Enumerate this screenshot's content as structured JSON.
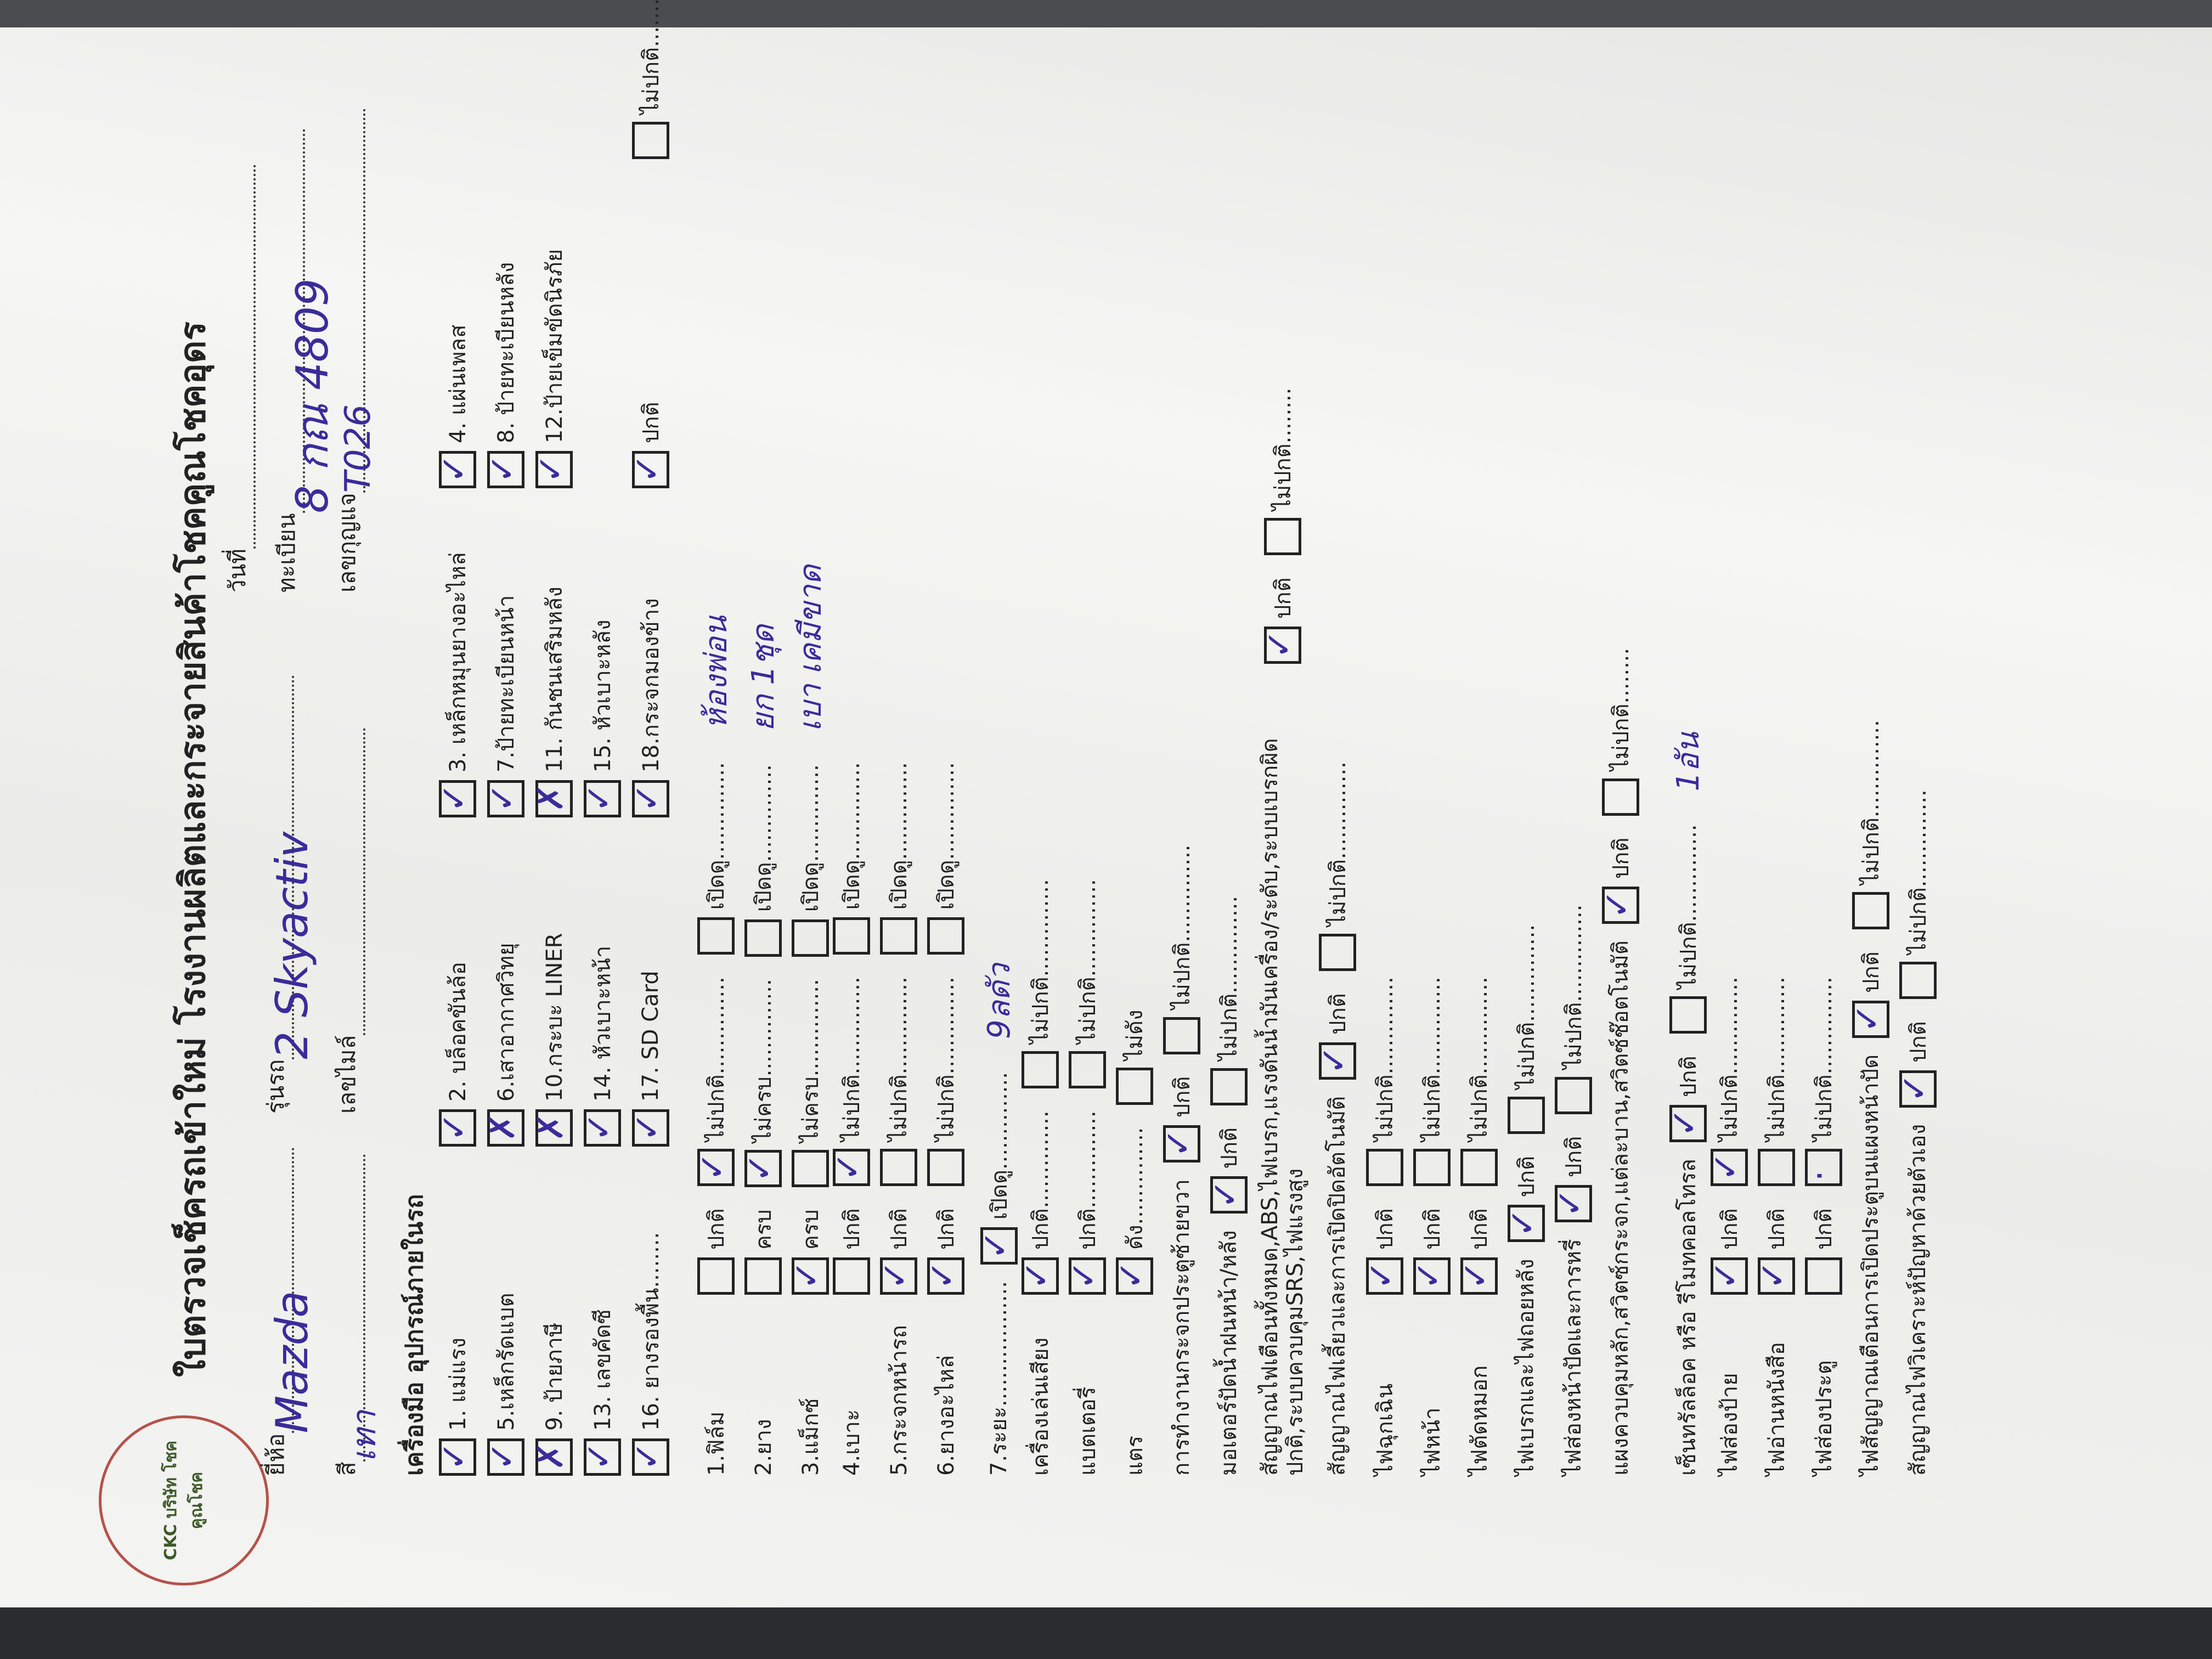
{
  "header": {
    "title": "ใบตรวจเช็ครถเข้าใหม่ โรงงานผลิตและกระจายสินค้าโชคคูณโชคอุดร",
    "logo_text": "CKC บริษัท โชคคูณโชค",
    "brand_label": "ยี่ห้อ",
    "brand_value": "Mazda",
    "model_label": "รุ่นรถ",
    "model_value": "2 Skyactiv",
    "date_label": "วันที่",
    "color_label": "สี",
    "color_value": "เทา",
    "mileage_label": "เลขไมล์",
    "plate_label": "ทะเบียน",
    "plate_value": "8 กณ 4809",
    "key_label": "เลขกุญแจ",
    "key_value": "T026"
  },
  "equipment_title": "เครื่องมือ อุปกรณ์ภายในรถ",
  "equipment_rows": [
    [
      {
        "t": "1. แม่แรง",
        "m": "✓"
      },
      {
        "t": "2. บล็อคขันล้อ",
        "m": "✓"
      },
      {
        "t": "3. เหล็กหมุนยางอะไหล่",
        "m": "✓"
      },
      {
        "t": "4. แผ่นเพลส",
        "m": "✓"
      }
    ],
    [
      {
        "t": "5.เหล็กรัดแบต",
        "m": "✓"
      },
      {
        "t": "6.เสาอากาศวิทยุ",
        "m": "✗"
      },
      {
        "t": "7.ป้ายทะเบียนหน้า",
        "m": "✓"
      },
      {
        "t": "8. ป้ายทะเบียนหลัง",
        "m": "✓"
      }
    ],
    [
      {
        "t": "9. ป้ายภาษี",
        "m": "✗"
      },
      {
        "t": "10.กระบะ LINER",
        "m": "✗"
      },
      {
        "t": "11. กันชนเสริมหลัง",
        "m": "✗"
      },
      {
        "t": "12.ป้ายเข็มขัดนิรภัย",
        "m": "✓"
      }
    ],
    [
      {
        "t": "13. เลขคัดซี",
        "m": "✓"
      },
      {
        "t": "14. หัวเบาะหน้า",
        "m": "✓"
      },
      {
        "t": "15. หัวเบาะหลัง",
        "m": "✓"
      }
    ],
    [
      {
        "t": "16. ยางรองพื้น........",
        "m": "✓"
      },
      {
        "t": "17. SD Card",
        "m": "✓"
      },
      {
        "t": "18.กระจกมองข้าง",
        "m": "✓"
      },
      {
        "t": "ปกติ",
        "m": "✓"
      },
      {
        "t": "ไม่ปกติ.............",
        "m": ""
      }
    ]
  ],
  "check_rows": [
    {
      "label": "1.ฟิล์ม",
      "items": [
        {
          "t": "ปกติ",
          "m": ""
        },
        {
          "t": "ไม่ปกติ..............",
          "m": "✓"
        },
        {
          "t": "เปิดดู..............",
          "m": ""
        }
      ],
      "note": "ห้องพ่อน"
    },
    {
      "label": "2.ยาง",
      "items": [
        {
          "t": "ครบ",
          "m": ""
        },
        {
          "t": "ไม่ครบ..............",
          "m": "✓"
        },
        {
          "t": "เปิดดู..............",
          "m": ""
        }
      ],
      "note": "ยก 1ชุด"
    },
    {
      "label": "3.แม็กซ์",
      "items": [
        {
          "t": "ครบ",
          "m": "✓"
        },
        {
          "t": "ไม่ครบ..............",
          "m": ""
        },
        {
          "t": "เปิดดู..............",
          "m": ""
        }
      ],
      "note": "เบา เคมีขาด"
    },
    {
      "label": "4.เบาะ",
      "items": [
        {
          "t": "ปกติ",
          "m": ""
        },
        {
          "t": "ไม่ปกติ..............",
          "m": "✓"
        },
        {
          "t": "เปิดดู..............",
          "m": ""
        }
      ]
    },
    {
      "label": "5.กระจกหน้ารถ",
      "items": [
        {
          "t": "ปกติ",
          "m": "✓"
        },
        {
          "t": "ไม่ปกติ..............",
          "m": ""
        },
        {
          "t": "เปิดดู..............",
          "m": ""
        }
      ]
    },
    {
      "label": "6.ยางอะไหล่",
      "items": [
        {
          "t": "ปกติ",
          "m": "✓"
        },
        {
          "t": "ไม่ปกติ..............",
          "m": ""
        },
        {
          "t": "เปิดดู..............",
          "m": ""
        }
      ]
    },
    {
      "label": "7.ระยะ..................",
      "items": [
        {
          "t": "เปิดดู..............",
          "m": "✓"
        }
      ],
      "note": "9ลดัว"
    },
    {
      "label": "เครื่องเล่นเสียง",
      "items": [
        {
          "t": "ปกติ..............",
          "m": "✓"
        },
        {
          "t": "ไม่ปกติ..............",
          "m": ""
        }
      ]
    },
    {
      "label": "แบตเตอรี่",
      "items": [
        {
          "t": "ปกติ..............",
          "m": "✓"
        },
        {
          "t": "ไม่ปกติ..............",
          "m": ""
        }
      ]
    },
    {
      "label": "แตร",
      "items": [
        {
          "t": "ดัง..............",
          "m": "✓"
        },
        {
          "t": "ไม่ดัง",
          "m": ""
        }
      ]
    },
    {
      "label": "การทำงานกระจกประตูซ้ายขวา",
      "items": [
        {
          "t": "ปกติ",
          "m": "✓"
        },
        {
          "t": "ไม่ปกติ..............",
          "m": ""
        }
      ]
    },
    {
      "label": "มอเตอร์ปัดน้ำฝนหน้า/หลัง",
      "items": [
        {
          "t": "ปกติ",
          "m": "✓"
        },
        {
          "t": "ไม่ปกติ..............",
          "m": ""
        }
      ]
    },
    {
      "label": "สัญญาณไฟเตือนทั้งหมด,ABS,ไฟเบรก,แรงดันน้ำมันเครื่อง/ระดับ,ระบบเบรกผิดปกติ,ระบบควบคุมSRS,ไฟแรงสูง",
      "items": [
        {
          "t": "ปกติ",
          "m": "✓"
        },
        {
          "t": "ไม่ปกติ........",
          "m": ""
        }
      ]
    },
    {
      "label": "สัญญาณไฟเลี้ยวและการเปิดปิดอัตโนมัติ",
      "items": [
        {
          "t": "ปกติ",
          "m": "✓"
        },
        {
          "t": "ไม่ปกติ..............",
          "m": ""
        }
      ]
    },
    {
      "label": "ไฟฉุกเฉิน",
      "items": [
        {
          "t": "ปกติ",
          "m": "✓"
        },
        {
          "t": "ไม่ปกติ..............",
          "m": ""
        }
      ]
    },
    {
      "label": "ไฟหน้า",
      "items": [
        {
          "t": "ปกติ",
          "m": "✓"
        },
        {
          "t": "ไม่ปกติ..............",
          "m": ""
        }
      ]
    },
    {
      "label": "ไฟตัดหมอก",
      "items": [
        {
          "t": "ปกติ",
          "m": "✓"
        },
        {
          "t": "ไม่ปกติ..............",
          "m": ""
        }
      ]
    },
    {
      "label": "ไฟเบรกและไฟถอยหลัง",
      "items": [
        {
          "t": "ปกติ",
          "m": "✓"
        },
        {
          "t": "ไม่ปกติ..............",
          "m": ""
        }
      ]
    },
    {
      "label": "ไฟส่องหน้าปัดและการหรี่",
      "items": [
        {
          "t": "ปกติ",
          "m": "✓"
        },
        {
          "t": "ไม่ปกติ..............",
          "m": ""
        }
      ]
    },
    {
      "label": "แผงควบคุมหลัก,สวิตซ์กระจก,แต่ละบาน,สวิตซ์ช๊อตโนมัติ",
      "items": [
        {
          "t": "ปกติ",
          "m": "✓"
        },
        {
          "t": "ไม่ปกติ........",
          "m": ""
        }
      ]
    },
    {
      "label": "เซ็นทรัลล็อค หรือ รีโมทคอลโทรล",
      "items": [
        {
          "t": "ปกติ",
          "m": "✓"
        },
        {
          "t": "ไม่ปกติ..............",
          "m": ""
        }
      ],
      "note": "1อัน"
    },
    {
      "label": "ไฟส่องป้าย",
      "items": [
        {
          "t": "ปกติ",
          "m": "✓"
        },
        {
          "t": "ไม่ปกติ..............",
          "m": "✓"
        }
      ]
    },
    {
      "label": "ไฟอ่านหนังสือ",
      "items": [
        {
          "t": "ปกติ",
          "m": "✓"
        },
        {
          "t": "ไม่ปกติ..............",
          "m": ""
        }
      ]
    },
    {
      "label": "ไฟส่องประตู",
      "items": [
        {
          "t": "ปกติ",
          "m": ""
        },
        {
          "t": "ไม่ปกติ..............",
          "m": "·"
        }
      ]
    },
    {
      "label": "ไฟสัญญาณเตือนการเปิดประตูบนแผงหน้าปัด",
      "items": [
        {
          "t": "ปกติ",
          "m": "✓"
        },
        {
          "t": "ไม่ปกติ..............",
          "m": ""
        }
      ]
    },
    {
      "label": "สัญญาณไฟวิเคราะห์ปัญหาด้วยตัวเอง",
      "items": [
        {
          "t": "ปกติ",
          "m": "✓"
        },
        {
          "t": "ไม่ปกติ..............",
          "m": ""
        }
      ]
    }
  ],
  "colors": {
    "ink": "#3a2c9a",
    "logo_green": "#3e5a2a",
    "logo_ring": "#b5524a"
  }
}
